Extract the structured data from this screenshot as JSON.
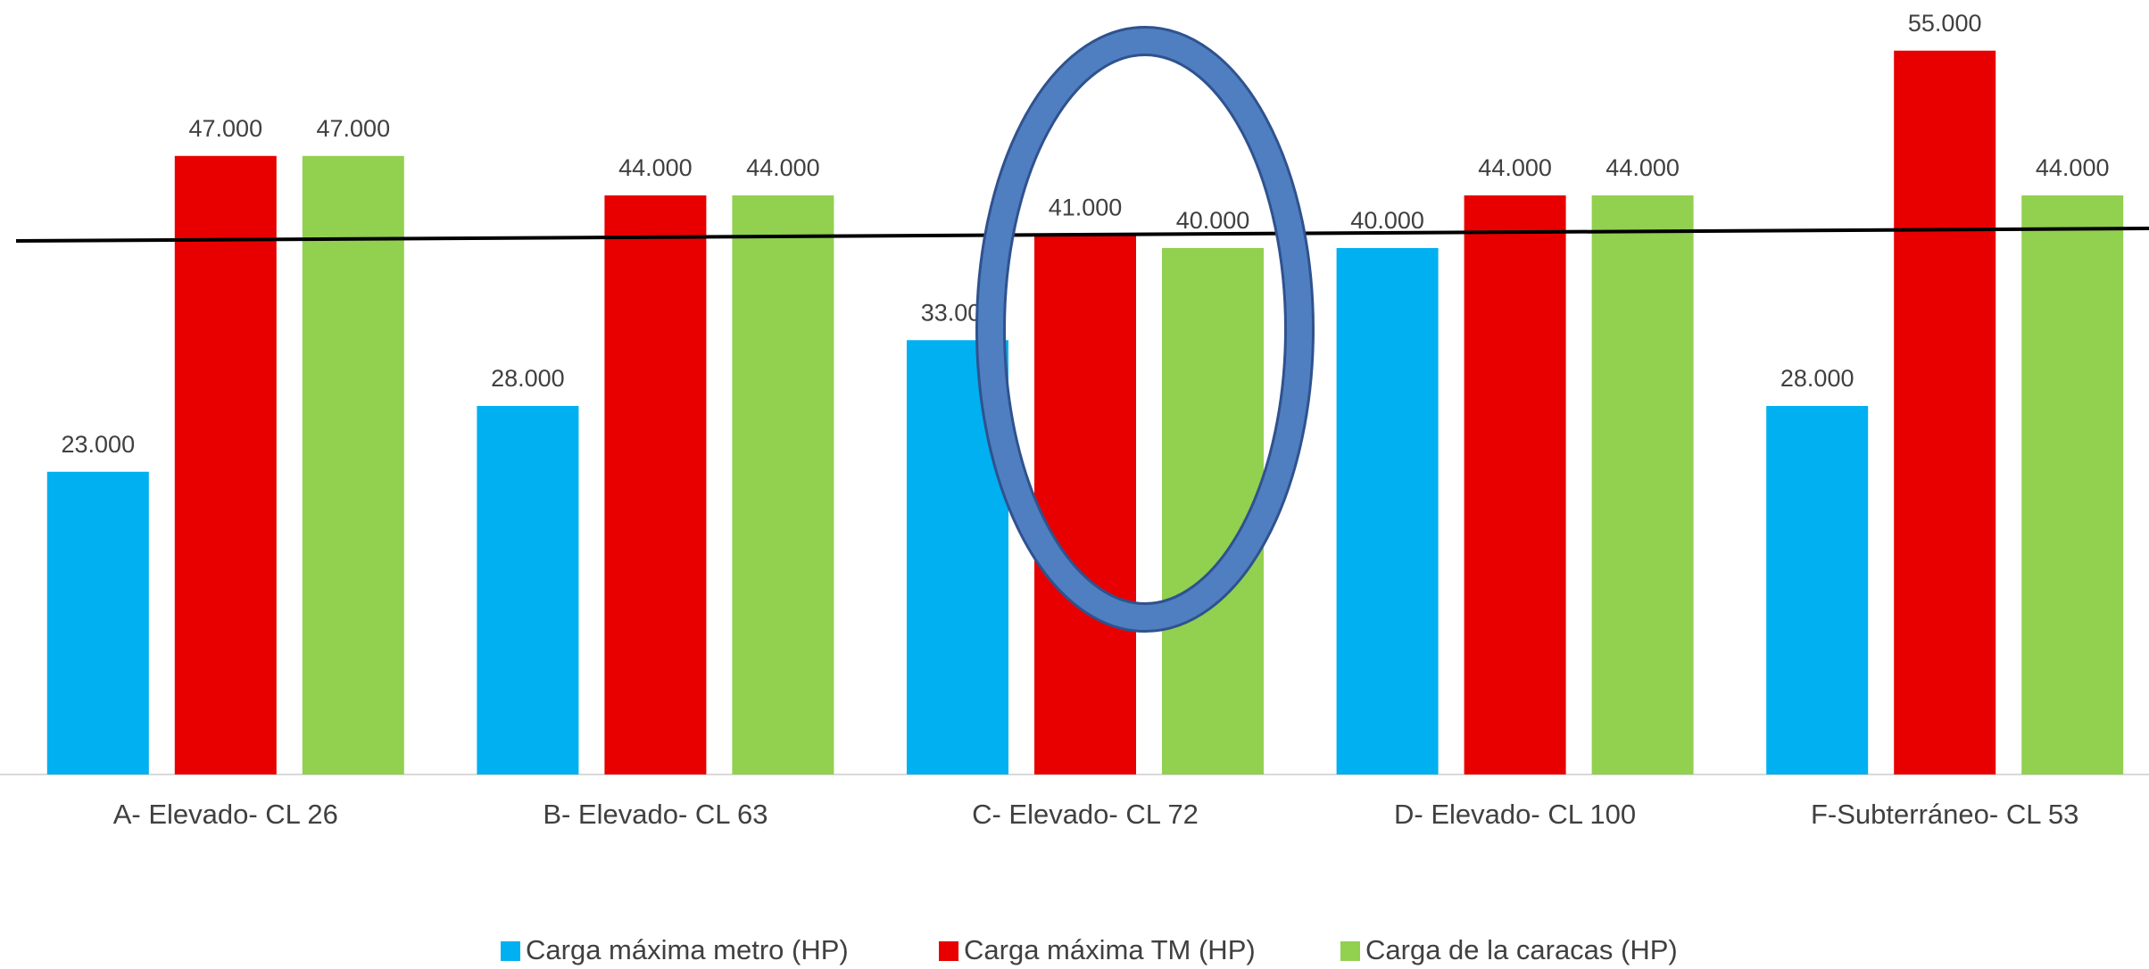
{
  "chart_data": {
    "type": "bar",
    "categories": [
      "A- Elevado- CL 26",
      "B- Elevado- CL 63",
      "C- Elevado- CL 72",
      "D- Elevado- CL 100",
      "F-Subterráneo- CL 53"
    ],
    "series": [
      {
        "name": "Carga máxima metro (HP)",
        "color": "#00b0f0",
        "values": [
          23000,
          28000,
          33000,
          40000,
          28000
        ],
        "value_labels": [
          "23.000",
          "28.000",
          "33.000",
          "40.000",
          "28.000"
        ]
      },
      {
        "name": "Carga máxima TM (HP)",
        "color": "#e80000",
        "values": [
          47000,
          44000,
          41000,
          44000,
          55000
        ],
        "value_labels": [
          "47.000",
          "44.000",
          "41.000",
          "44.000",
          "55.000"
        ]
      },
      {
        "name": "Carga de la caracas (HP)",
        "color": "#92d050",
        "values": [
          47000,
          44000,
          40000,
          44000,
          44000
        ],
        "value_labels": [
          "47.000",
          "44.000",
          "40.000",
          "44.000",
          "44.000"
        ]
      }
    ],
    "ylim": [
      0,
      60000
    ],
    "legend": "bottom"
  }
}
